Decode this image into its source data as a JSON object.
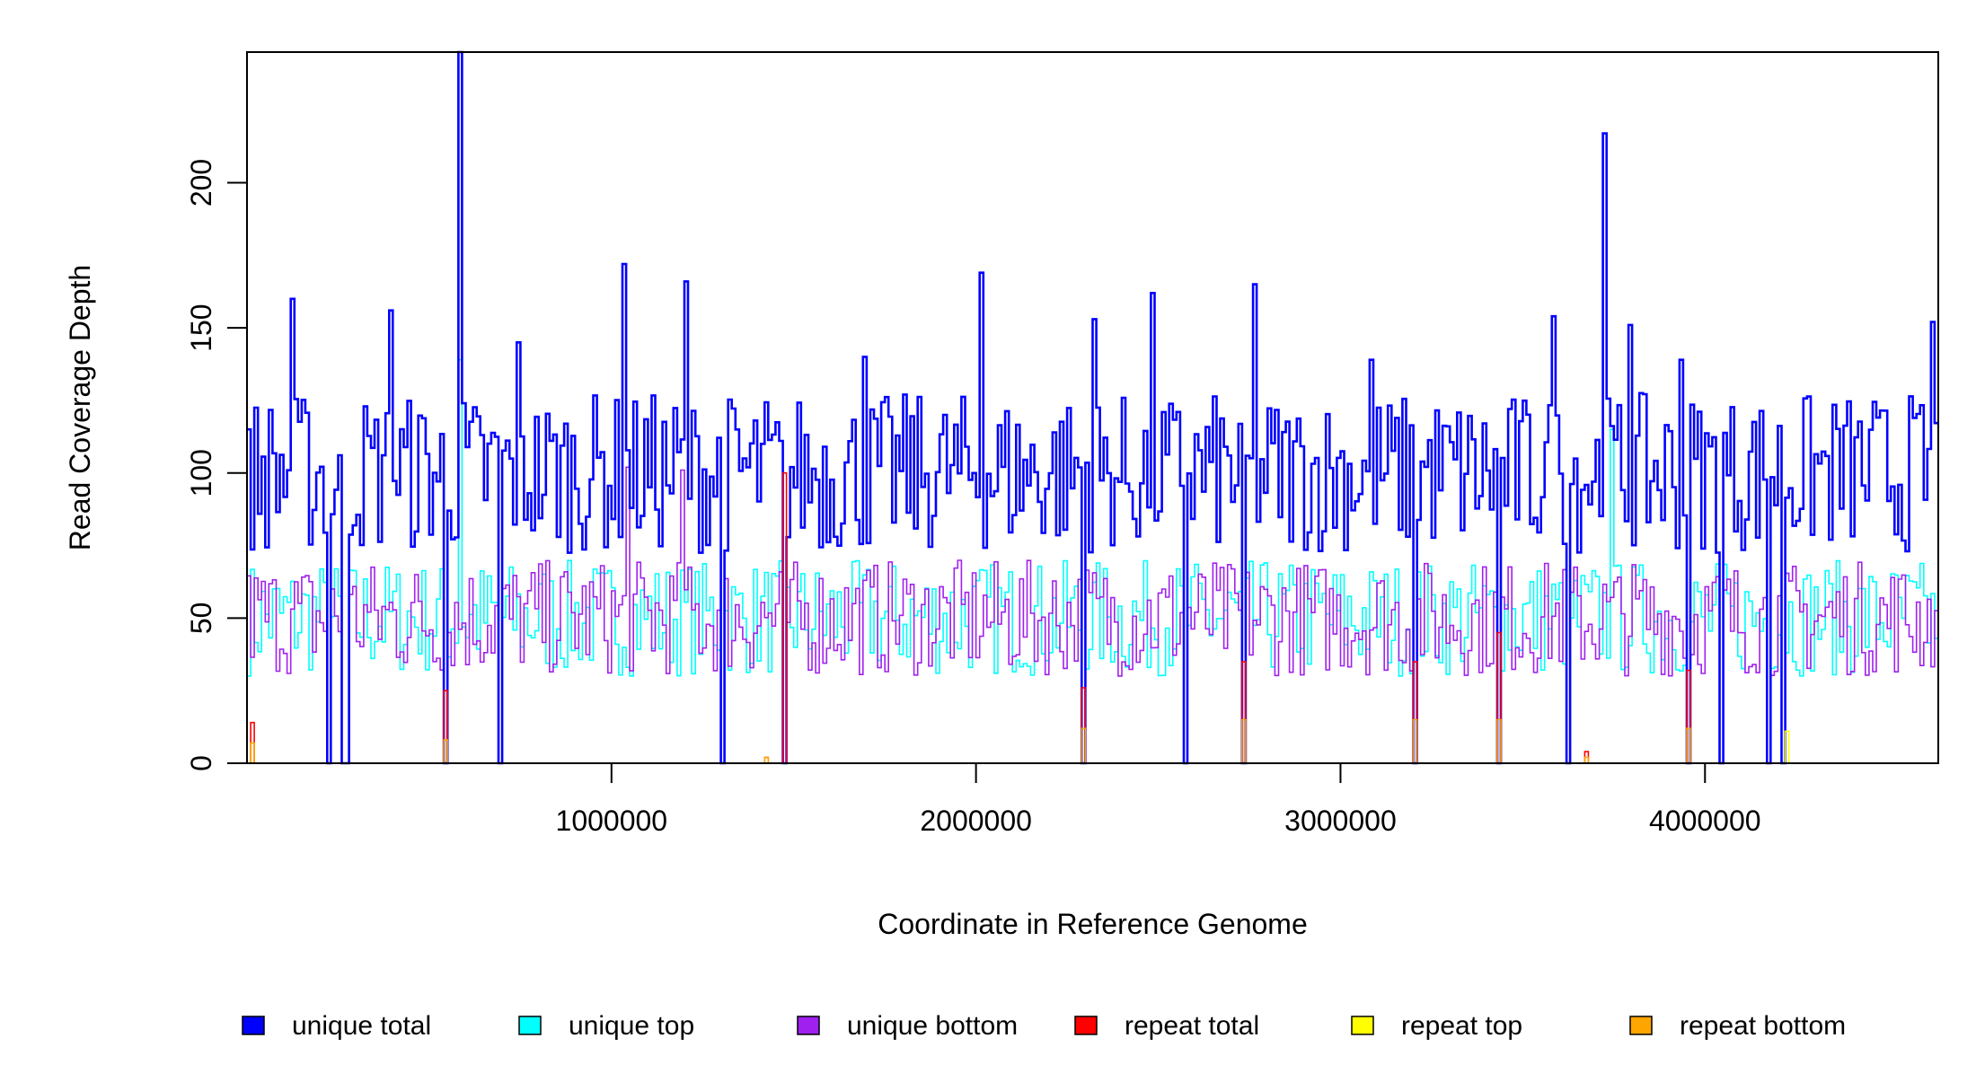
{
  "chart_data": {
    "type": "line",
    "title": "",
    "xlabel": "Coordinate in Reference Genome",
    "ylabel": "Read Coverage Depth",
    "xlim": [
      0,
      4640000
    ],
    "ylim": [
      0,
      245
    ],
    "x_ticks": [
      1000000,
      2000000,
      3000000,
      4000000
    ],
    "x_tick_labels": [
      "1000000",
      "2000000",
      "3000000",
      "4000000"
    ],
    "y_ticks": [
      0,
      50,
      100,
      150,
      200
    ],
    "y_tick_labels": [
      "0",
      "50",
      "100",
      "150",
      "200"
    ],
    "grid": false,
    "legend_position": "bottom",
    "bin_size": 10000,
    "series": [
      {
        "name": "unique total",
        "color": "#0000ff",
        "baseline": 100,
        "spikes": [
          [
            0,
            115
          ],
          [
            120000,
            160
          ],
          [
            390000,
            156
          ],
          [
            580000,
            245
          ],
          [
            740000,
            145
          ],
          [
            1030000,
            172
          ],
          [
            1200000,
            166
          ],
          [
            1690000,
            140
          ],
          [
            2010000,
            169
          ],
          [
            2320000,
            153
          ],
          [
            2480000,
            162
          ],
          [
            2760000,
            165
          ],
          [
            3080000,
            139
          ],
          [
            3580000,
            154
          ],
          [
            3720000,
            217
          ],
          [
            3790000,
            151
          ],
          [
            3930000,
            139
          ],
          [
            4620000,
            152
          ]
        ],
        "dropouts": [
          220000,
          260000,
          270000,
          540000,
          690000,
          1300000,
          1470000,
          2290000,
          2570000,
          2730000,
          3200000,
          3430000,
          3620000,
          3950000,
          4040000,
          4170000,
          4210000
        ]
      },
      {
        "name": "unique top",
        "color": "#00ffff",
        "baseline": 50,
        "spikes": [
          [
            580000,
            139
          ],
          [
            3740000,
            115
          ]
        ]
      },
      {
        "name": "unique bottom",
        "color": "#a020f0",
        "baseline": 50,
        "spikes": [
          [
            1040000,
            102
          ],
          [
            1190000,
            101
          ]
        ]
      },
      {
        "name": "repeat total",
        "color": "#ff0000",
        "points": [
          [
            10000,
            14
          ],
          [
            540000,
            25
          ],
          [
            1420000,
            2
          ],
          [
            1470000,
            100
          ],
          [
            2290000,
            26
          ],
          [
            2730000,
            35
          ],
          [
            3200000,
            35
          ],
          [
            3430000,
            45
          ],
          [
            3670000,
            4
          ],
          [
            3950000,
            32
          ]
        ]
      },
      {
        "name": "repeat top",
        "color": "#ffff00",
        "points": [
          [
            4220000,
            11
          ]
        ]
      },
      {
        "name": "repeat bottom",
        "color": "#ffa500",
        "points": [
          [
            10000,
            7
          ],
          [
            540000,
            8
          ],
          [
            1420000,
            2
          ],
          [
            2290000,
            12
          ],
          [
            2730000,
            15
          ],
          [
            3200000,
            15
          ],
          [
            3430000,
            15
          ],
          [
            3670000,
            2
          ],
          [
            3950000,
            12
          ]
        ]
      }
    ]
  }
}
